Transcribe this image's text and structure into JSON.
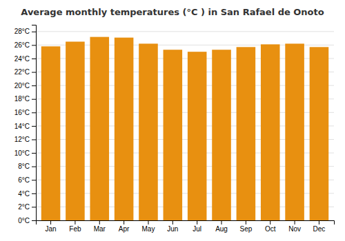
{
  "chart_data": {
    "type": "bar",
    "title": "Average monthly temperatures (°C ) in San Rafael de Onoto",
    "categories": [
      "Jan",
      "Feb",
      "Mar",
      "Apr",
      "May",
      "Jun",
      "Jul",
      "Aug",
      "Sep",
      "Oct",
      "Nov",
      "Dec"
    ],
    "values": [
      25.8,
      26.5,
      27.2,
      27.1,
      26.2,
      25.3,
      25.0,
      25.3,
      25.7,
      26.1,
      26.2,
      25.7
    ],
    "color": "#E89010",
    "ylim": [
      0,
      29
    ],
    "yticks": [
      {
        "value": 0,
        "label": "0°C"
      },
      {
        "value": 2,
        "label": "2°C"
      },
      {
        "value": 4,
        "label": "4°C"
      },
      {
        "value": 6,
        "label": "6°C"
      },
      {
        "value": 8,
        "label": "8°C"
      },
      {
        "value": 10,
        "label": "10°C"
      },
      {
        "value": 12,
        "label": "12°C"
      },
      {
        "value": 14,
        "label": "14°C"
      },
      {
        "value": 16,
        "label": "16°C"
      },
      {
        "value": 18,
        "label": "18°C"
      },
      {
        "value": 20,
        "label": "20°C"
      },
      {
        "value": 22,
        "label": "22°C"
      },
      {
        "value": 24,
        "label": "24°C"
      },
      {
        "value": 26,
        "label": "26°C"
      },
      {
        "value": 28,
        "label": "28°C"
      }
    ],
    "grid": true
  }
}
